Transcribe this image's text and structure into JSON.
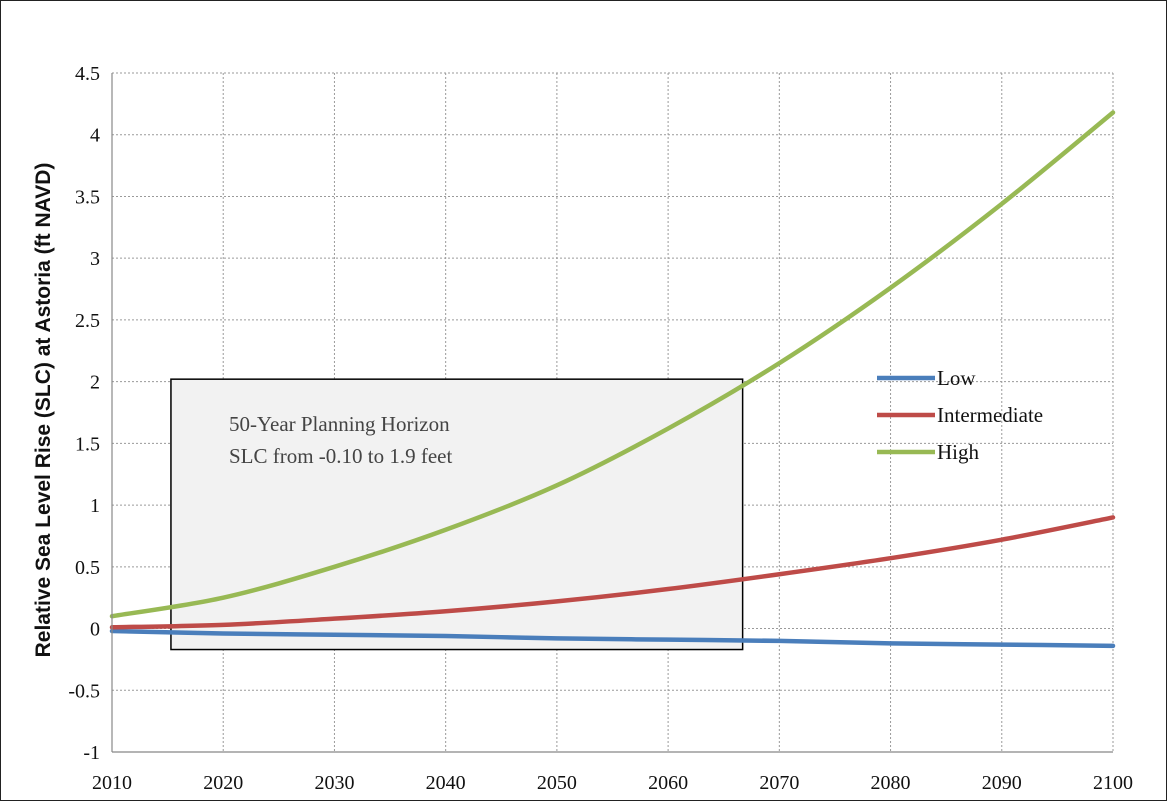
{
  "chart_data": {
    "type": "line",
    "title": "",
    "xlabel": "",
    "ylabel": "Relative Sea Level Rise (SLC) at Astoria (ft NAVD)",
    "xlim": [
      2010,
      2100
    ],
    "ylim": [
      -1,
      4.5
    ],
    "xticks": [
      2010,
      2020,
      2030,
      2040,
      2050,
      2060,
      2070,
      2080,
      2090,
      2100
    ],
    "yticks": [
      -1,
      -0.5,
      0,
      0.5,
      1,
      1.5,
      2,
      2.5,
      3,
      3.5,
      4,
      4.5
    ],
    "ytick_labels": [
      "-1",
      "-0.5",
      "0",
      "0.5",
      "1",
      "1.5",
      "2",
      "2.5",
      "3",
      "3.5",
      "4",
      "4.5"
    ],
    "grid": "dotted, both axes",
    "legend_position": "right",
    "x": [
      2010,
      2020,
      2030,
      2040,
      2050,
      2060,
      2070,
      2080,
      2090,
      2100
    ],
    "series": [
      {
        "name": "Low",
        "color": "#4a7ebb",
        "values": [
          -0.02,
          -0.04,
          -0.05,
          -0.06,
          -0.08,
          -0.09,
          -0.1,
          -0.12,
          -0.13,
          -0.14
        ]
      },
      {
        "name": "Intermediate",
        "color": "#be4b48",
        "values": [
          0.01,
          0.03,
          0.08,
          0.14,
          0.22,
          0.32,
          0.44,
          0.57,
          0.72,
          0.9
        ]
      },
      {
        "name": "High",
        "color": "#98b954",
        "values": [
          0.1,
          0.25,
          0.5,
          0.8,
          1.16,
          1.62,
          2.15,
          2.76,
          3.44,
          4.18
        ]
      }
    ],
    "annotation": {
      "lines": [
        "50-Year Planning Horizon",
        "SLC from -0.10 to 1.9 feet"
      ],
      "x_range": [
        2015.3,
        2066.7
      ],
      "y_range": [
        -0.17,
        2.02
      ]
    }
  }
}
